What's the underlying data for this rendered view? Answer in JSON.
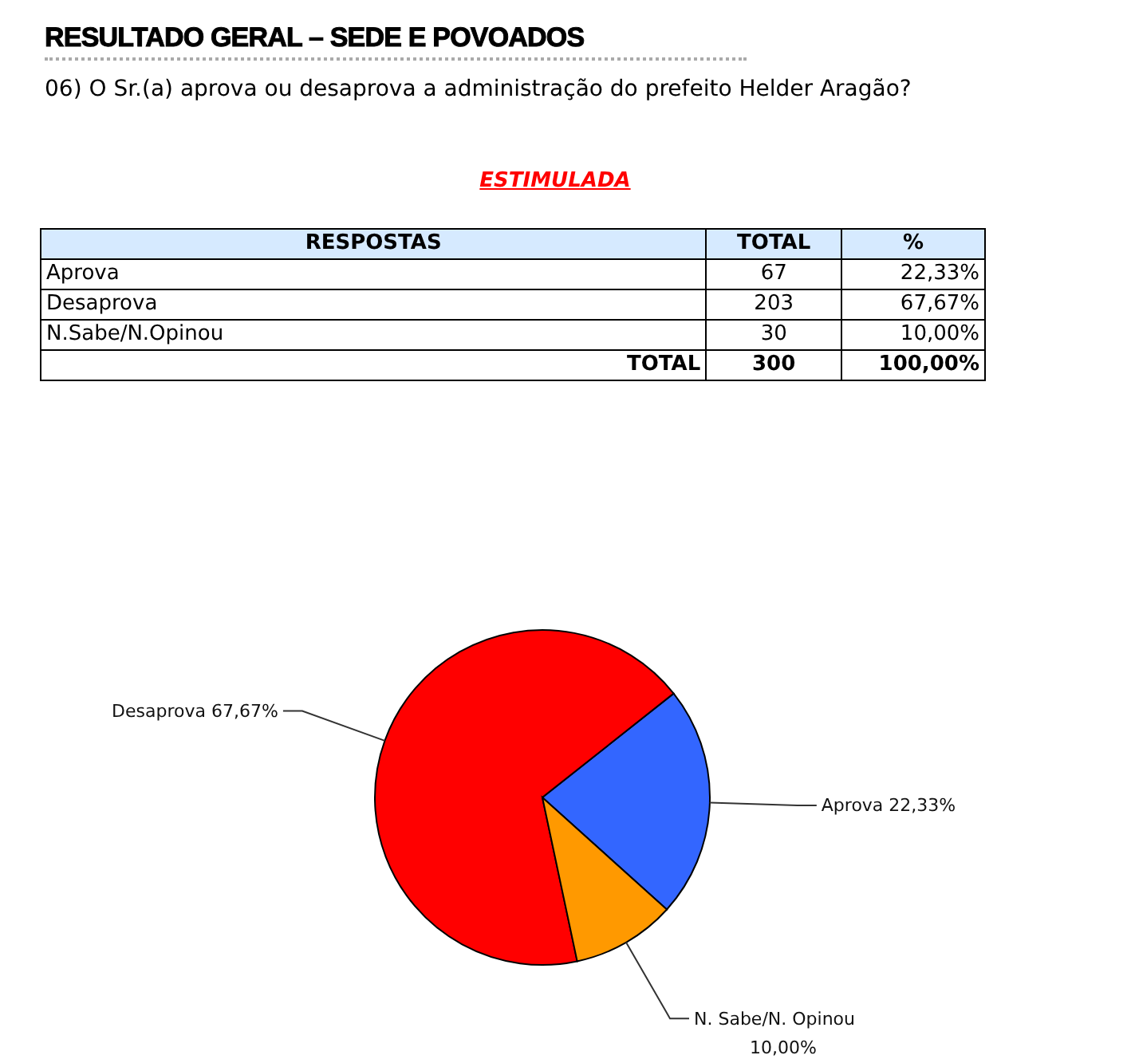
{
  "chart_data": [
    {
      "type": "other",
      "title": "RESULTADO GERAL – SEDE E POVOADOS",
      "subtitle": "06) O Sr.(a) aprova ou desaprova a administração do prefeito Helder Aragão?",
      "annotations": [
        "ESTIMULADA",
        "RESPOSTAS",
        "TOTAL",
        "%",
        "Aprova",
        "67",
        "22,33%",
        "Desaprova",
        "203",
        "67,67%",
        "N.Sabe/N.Opinou",
        "30",
        "10,00%",
        "TOTAL",
        "300",
        "100,00%"
      ]
    },
    {
      "type": "pie",
      "categories": [
        "Aprova",
        "Desaprova",
        "N. Sabe/N. Opinou"
      ],
      "values": [
        22.33,
        67.67,
        10.0
      ],
      "value_labels": [
        "22,33%",
        "67,67%",
        "10,00%"
      ],
      "colors": [
        "#3366ff",
        "#ff0000",
        "#ff9900"
      ]
    }
  ]
}
